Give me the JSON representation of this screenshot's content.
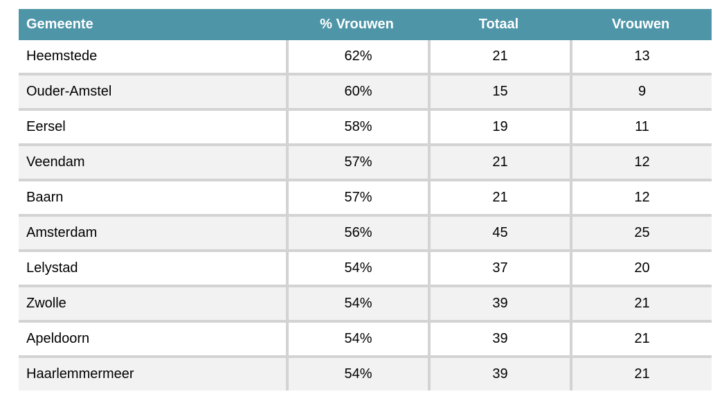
{
  "colors": {
    "header_bg": "#4E95A8",
    "header_text": "#FFFFFF",
    "row_odd_bg": "#FFFFFF",
    "row_even_bg": "#F2F2F2",
    "divider": "#D3D3D3",
    "body_text": "#000000"
  },
  "table": {
    "columns": [
      "Gemeente",
      "% Vrouwen",
      "Totaal",
      "Vrouwen"
    ],
    "rows": [
      {
        "gemeente": "Heemstede",
        "pct_vrouwen": "62%",
        "totaal": "21",
        "vrouwen": "13"
      },
      {
        "gemeente": "Ouder-Amstel",
        "pct_vrouwen": "60%",
        "totaal": "15",
        "vrouwen": "9"
      },
      {
        "gemeente": "Eersel",
        "pct_vrouwen": "58%",
        "totaal": "19",
        "vrouwen": "11"
      },
      {
        "gemeente": "Veendam",
        "pct_vrouwen": "57%",
        "totaal": "21",
        "vrouwen": "12"
      },
      {
        "gemeente": "Baarn",
        "pct_vrouwen": "57%",
        "totaal": "21",
        "vrouwen": "12"
      },
      {
        "gemeente": "Amsterdam",
        "pct_vrouwen": "56%",
        "totaal": "45",
        "vrouwen": "25"
      },
      {
        "gemeente": "Lelystad",
        "pct_vrouwen": "54%",
        "totaal": "37",
        "vrouwen": "20"
      },
      {
        "gemeente": "Zwolle",
        "pct_vrouwen": "54%",
        "totaal": "39",
        "vrouwen": "21"
      },
      {
        "gemeente": "Apeldoorn",
        "pct_vrouwen": "54%",
        "totaal": "39",
        "vrouwen": "21"
      },
      {
        "gemeente": "Haarlemmermeer",
        "pct_vrouwen": "54%",
        "totaal": "39",
        "vrouwen": "21"
      }
    ]
  },
  "chart_data": {
    "type": "table",
    "title": "",
    "columns": [
      "Gemeente",
      "% Vrouwen",
      "Totaal",
      "Vrouwen"
    ],
    "rows": [
      [
        "Heemstede",
        "62%",
        21,
        13
      ],
      [
        "Ouder-Amstel",
        "60%",
        15,
        9
      ],
      [
        "Eersel",
        "58%",
        19,
        11
      ],
      [
        "Veendam",
        "57%",
        21,
        12
      ],
      [
        "Baarn",
        "57%",
        21,
        12
      ],
      [
        "Amsterdam",
        "56%",
        45,
        25
      ],
      [
        "Lelystad",
        "54%",
        37,
        20
      ],
      [
        "Zwolle",
        "54%",
        39,
        21
      ],
      [
        "Apeldoorn",
        "54%",
        39,
        21
      ],
      [
        "Haarlemmermeer",
        "54%",
        39,
        21
      ]
    ]
  }
}
